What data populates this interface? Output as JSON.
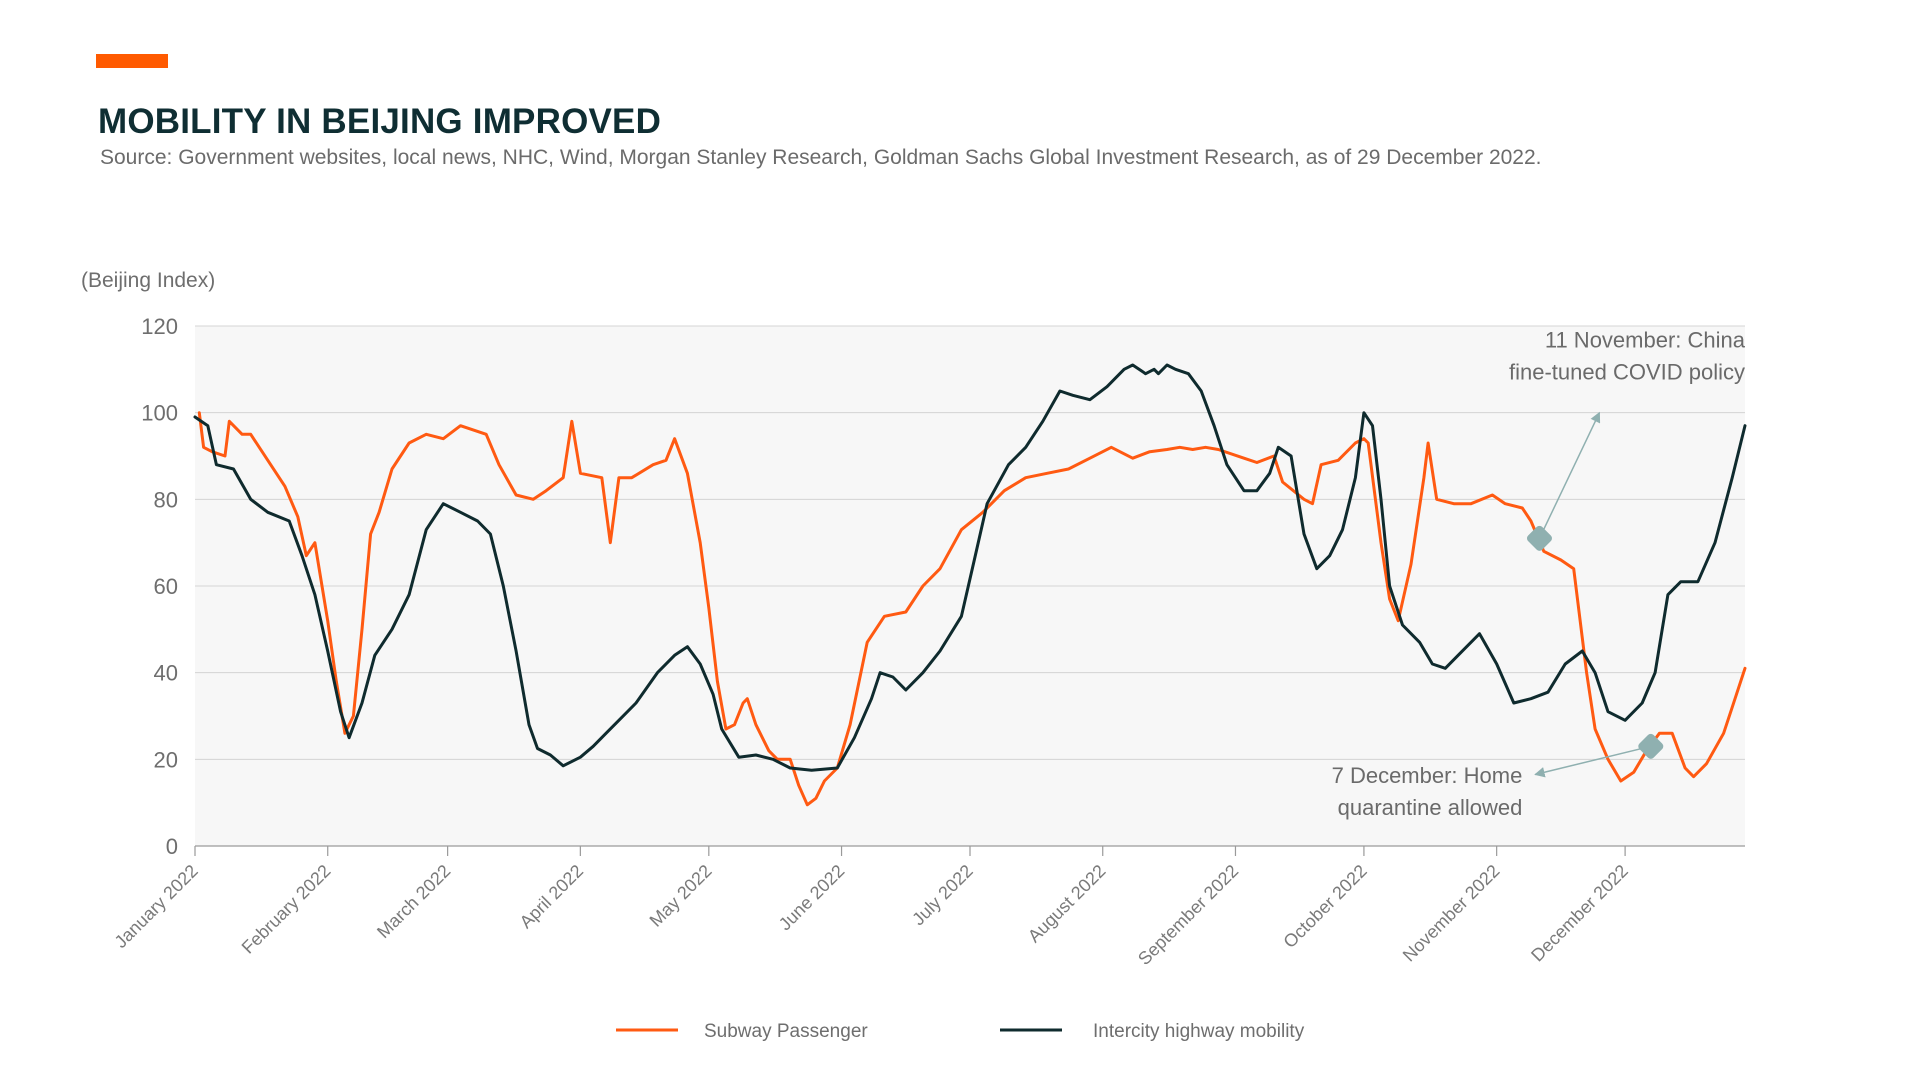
{
  "header": {
    "title": "MOBILITY IN BEIJING IMPROVED",
    "subtitle": "Source: Government websites, local news, NHC, Wind, Morgan Stanley Research, Goldman Sachs Global Investment Research, as of 29 December 2022."
  },
  "colors": {
    "accent": "#ff5a00",
    "title": "#0f2e33",
    "subway": "#ff5a12",
    "highway": "#0f2b2e",
    "annotation": "#8fb0b0",
    "plot_bg": "#f7f7f7",
    "grid": "#d4d4d4"
  },
  "chart_data": {
    "type": "line",
    "ylabel": "(Beijing Index)",
    "ylim": [
      0,
      120
    ],
    "yticks": [
      0,
      20,
      40,
      60,
      80,
      100,
      120
    ],
    "grid": true,
    "legend_position": "bottom",
    "x_tick_labels": [
      "January 2022",
      "February 2022",
      "March 2022",
      "April 2022",
      "May 2022",
      "June 2022",
      "July 2022",
      "August 2022",
      "September 2022",
      "October 2022",
      "November 2022",
      "December 2022"
    ],
    "x_tick_dates": [
      "2022-01-01",
      "2022-02-01",
      "2022-03-01",
      "2022-04-01",
      "2022-05-01",
      "2022-06-01",
      "2022-07-01",
      "2022-08-01",
      "2022-09-01",
      "2022-10-01",
      "2022-11-01",
      "2022-12-01"
    ],
    "xlim": [
      "2022-01-01",
      "2022-12-29"
    ],
    "series": [
      {
        "name": "Subway Passenger",
        "color": "#ff5a12",
        "points": [
          [
            "2022-01-02",
            100
          ],
          [
            "2022-01-03",
            92
          ],
          [
            "2022-01-05",
            91
          ],
          [
            "2022-01-08",
            90
          ],
          [
            "2022-01-09",
            98
          ],
          [
            "2022-01-12",
            95
          ],
          [
            "2022-01-14",
            95
          ],
          [
            "2022-01-18",
            89
          ],
          [
            "2022-01-22",
            83
          ],
          [
            "2022-01-25",
            76
          ],
          [
            "2022-01-27",
            67
          ],
          [
            "2022-01-29",
            70
          ],
          [
            "2022-02-01",
            52
          ],
          [
            "2022-02-03",
            38
          ],
          [
            "2022-02-05",
            26
          ],
          [
            "2022-02-07",
            30
          ],
          [
            "2022-02-09",
            50
          ],
          [
            "2022-02-11",
            72
          ],
          [
            "2022-02-13",
            77
          ],
          [
            "2022-02-16",
            87
          ],
          [
            "2022-02-20",
            93
          ],
          [
            "2022-02-24",
            95
          ],
          [
            "2022-02-28",
            94
          ],
          [
            "2022-03-04",
            97
          ],
          [
            "2022-03-10",
            95
          ],
          [
            "2022-03-13",
            88
          ],
          [
            "2022-03-17",
            81
          ],
          [
            "2022-03-21",
            80
          ],
          [
            "2022-03-24",
            82
          ],
          [
            "2022-03-28",
            85
          ],
          [
            "2022-03-30",
            98
          ],
          [
            "2022-04-01",
            86
          ],
          [
            "2022-04-06",
            85
          ],
          [
            "2022-04-08",
            70
          ],
          [
            "2022-04-10",
            85
          ],
          [
            "2022-04-13",
            85
          ],
          [
            "2022-04-18",
            88
          ],
          [
            "2022-04-21",
            89
          ],
          [
            "2022-04-23",
            94
          ],
          [
            "2022-04-26",
            86
          ],
          [
            "2022-04-29",
            70
          ],
          [
            "2022-05-01",
            55
          ],
          [
            "2022-05-03",
            38
          ],
          [
            "2022-05-05",
            27
          ],
          [
            "2022-05-07",
            28
          ],
          [
            "2022-05-09",
            33
          ],
          [
            "2022-05-10",
            34
          ],
          [
            "2022-05-12",
            28
          ],
          [
            "2022-05-15",
            22
          ],
          [
            "2022-05-17",
            20
          ],
          [
            "2022-05-20",
            20
          ],
          [
            "2022-05-22",
            14
          ],
          [
            "2022-05-24",
            9.5
          ],
          [
            "2022-05-26",
            11
          ],
          [
            "2022-05-28",
            15
          ],
          [
            "2022-05-31",
            18
          ],
          [
            "2022-06-03",
            28
          ],
          [
            "2022-06-07",
            47
          ],
          [
            "2022-06-11",
            53
          ],
          [
            "2022-06-16",
            54
          ],
          [
            "2022-06-20",
            60
          ],
          [
            "2022-06-24",
            64
          ],
          [
            "2022-06-29",
            73
          ],
          [
            "2022-07-04",
            77
          ],
          [
            "2022-07-09",
            82
          ],
          [
            "2022-07-14",
            85
          ],
          [
            "2022-07-19",
            86
          ],
          [
            "2022-07-24",
            87
          ],
          [
            "2022-07-29",
            89.5
          ],
          [
            "2022-08-03",
            92
          ],
          [
            "2022-08-08",
            89.5
          ],
          [
            "2022-08-12",
            91
          ],
          [
            "2022-08-16",
            91.5
          ],
          [
            "2022-08-19",
            92
          ],
          [
            "2022-08-22",
            91.5
          ],
          [
            "2022-08-25",
            92
          ],
          [
            "2022-08-28",
            91.5
          ],
          [
            "2022-09-03",
            89.5
          ],
          [
            "2022-09-06",
            88.5
          ],
          [
            "2022-09-10",
            90
          ],
          [
            "2022-09-12",
            84
          ],
          [
            "2022-09-17",
            80
          ],
          [
            "2022-09-19",
            79
          ],
          [
            "2022-09-21",
            88
          ],
          [
            "2022-09-25",
            89
          ],
          [
            "2022-09-29",
            93
          ],
          [
            "2022-10-01",
            94
          ],
          [
            "2022-10-02",
            93
          ],
          [
            "2022-10-05",
            70
          ],
          [
            "2022-10-07",
            57
          ],
          [
            "2022-10-09",
            52
          ],
          [
            "2022-10-12",
            65
          ],
          [
            "2022-10-15",
            85
          ],
          [
            "2022-10-16",
            93
          ],
          [
            "2022-10-18",
            80
          ],
          [
            "2022-10-22",
            79
          ],
          [
            "2022-10-26",
            79
          ],
          [
            "2022-10-31",
            81
          ],
          [
            "2022-11-03",
            79
          ],
          [
            "2022-11-07",
            78
          ],
          [
            "2022-11-09",
            75
          ],
          [
            "2022-11-12",
            68
          ],
          [
            "2022-11-16",
            66
          ],
          [
            "2022-11-19",
            64
          ],
          [
            "2022-11-22",
            40
          ],
          [
            "2022-11-24",
            27
          ],
          [
            "2022-11-27",
            20
          ],
          [
            "2022-11-30",
            15
          ],
          [
            "2022-12-03",
            17
          ],
          [
            "2022-12-06",
            22
          ],
          [
            "2022-12-09",
            26
          ],
          [
            "2022-12-12",
            26
          ],
          [
            "2022-12-15",
            18
          ],
          [
            "2022-12-17",
            16
          ],
          [
            "2022-12-20",
            19
          ],
          [
            "2022-12-24",
            26
          ],
          [
            "2022-12-26",
            32
          ],
          [
            "2022-12-29",
            41
          ]
        ]
      },
      {
        "name": "Intercity highway mobility",
        "color": "#0f2b2e",
        "points": [
          [
            "2022-01-01",
            99
          ],
          [
            "2022-01-04",
            97
          ],
          [
            "2022-01-06",
            88
          ],
          [
            "2022-01-10",
            87
          ],
          [
            "2022-01-14",
            80
          ],
          [
            "2022-01-18",
            77
          ],
          [
            "2022-01-23",
            75
          ],
          [
            "2022-01-26",
            67
          ],
          [
            "2022-01-29",
            58
          ],
          [
            "2022-02-01",
            45
          ],
          [
            "2022-02-04",
            31
          ],
          [
            "2022-02-06",
            25
          ],
          [
            "2022-02-09",
            33
          ],
          [
            "2022-02-12",
            44
          ],
          [
            "2022-02-16",
            50
          ],
          [
            "2022-02-20",
            58
          ],
          [
            "2022-02-24",
            73
          ],
          [
            "2022-02-28",
            79
          ],
          [
            "2022-03-04",
            77
          ],
          [
            "2022-03-08",
            75
          ],
          [
            "2022-03-11",
            72
          ],
          [
            "2022-03-14",
            60
          ],
          [
            "2022-03-17",
            45
          ],
          [
            "2022-03-20",
            28
          ],
          [
            "2022-03-22",
            22.5
          ],
          [
            "2022-03-25",
            21
          ],
          [
            "2022-03-28",
            18.5
          ],
          [
            "2022-04-01",
            20.5
          ],
          [
            "2022-04-04",
            23
          ],
          [
            "2022-04-07",
            26
          ],
          [
            "2022-04-10",
            29
          ],
          [
            "2022-04-14",
            33
          ],
          [
            "2022-04-19",
            40
          ],
          [
            "2022-04-23",
            44
          ],
          [
            "2022-04-26",
            46
          ],
          [
            "2022-04-29",
            42
          ],
          [
            "2022-05-02",
            35
          ],
          [
            "2022-05-04",
            27
          ],
          [
            "2022-05-08",
            20.5
          ],
          [
            "2022-05-12",
            21
          ],
          [
            "2022-05-16",
            20
          ],
          [
            "2022-05-20",
            18
          ],
          [
            "2022-05-25",
            17.5
          ],
          [
            "2022-05-31",
            18
          ],
          [
            "2022-06-04",
            25
          ],
          [
            "2022-06-08",
            34
          ],
          [
            "2022-06-10",
            40
          ],
          [
            "2022-06-13",
            39
          ],
          [
            "2022-06-16",
            36
          ],
          [
            "2022-06-20",
            40
          ],
          [
            "2022-06-24",
            45
          ],
          [
            "2022-06-29",
            53
          ],
          [
            "2022-07-02",
            66
          ],
          [
            "2022-07-05",
            79
          ],
          [
            "2022-07-10",
            88
          ],
          [
            "2022-07-14",
            92
          ],
          [
            "2022-07-18",
            98
          ],
          [
            "2022-07-22",
            105
          ],
          [
            "2022-07-25",
            104
          ],
          [
            "2022-07-29",
            103
          ],
          [
            "2022-08-02",
            106
          ],
          [
            "2022-08-06",
            110
          ],
          [
            "2022-08-08",
            111
          ],
          [
            "2022-08-11",
            109
          ],
          [
            "2022-08-13",
            110
          ],
          [
            "2022-08-14",
            109
          ],
          [
            "2022-08-16",
            111
          ],
          [
            "2022-08-18",
            110
          ],
          [
            "2022-08-21",
            109
          ],
          [
            "2022-08-24",
            105
          ],
          [
            "2022-08-27",
            97
          ],
          [
            "2022-08-30",
            88
          ],
          [
            "2022-09-03",
            82
          ],
          [
            "2022-09-06",
            82
          ],
          [
            "2022-09-09",
            86
          ],
          [
            "2022-09-11",
            92
          ],
          [
            "2022-09-14",
            90
          ],
          [
            "2022-09-17",
            72
          ],
          [
            "2022-09-20",
            64
          ],
          [
            "2022-09-23",
            67
          ],
          [
            "2022-09-26",
            73
          ],
          [
            "2022-09-29",
            85
          ],
          [
            "2022-10-01",
            100
          ],
          [
            "2022-10-03",
            97
          ],
          [
            "2022-10-05",
            80
          ],
          [
            "2022-10-07",
            60
          ],
          [
            "2022-10-10",
            51
          ],
          [
            "2022-10-14",
            47
          ],
          [
            "2022-10-17",
            42
          ],
          [
            "2022-10-20",
            41
          ],
          [
            "2022-10-23",
            44
          ],
          [
            "2022-10-28",
            49
          ],
          [
            "2022-11-01",
            42
          ],
          [
            "2022-11-05",
            33
          ],
          [
            "2022-11-09",
            34
          ],
          [
            "2022-11-13",
            35.5
          ],
          [
            "2022-11-17",
            42
          ],
          [
            "2022-11-21",
            45
          ],
          [
            "2022-11-24",
            40
          ],
          [
            "2022-11-27",
            31
          ],
          [
            "2022-12-01",
            29
          ],
          [
            "2022-12-05",
            33
          ],
          [
            "2022-12-08",
            40
          ],
          [
            "2022-12-11",
            58
          ],
          [
            "2022-12-14",
            61
          ],
          [
            "2022-12-18",
            61
          ],
          [
            "2022-12-22",
            70
          ],
          [
            "2022-12-26",
            85
          ],
          [
            "2022-12-29",
            97
          ]
        ]
      }
    ],
    "annotations": [
      {
        "id": "nov11",
        "lines": [
          "11 November: China",
          "fine-tuned COVID policy"
        ],
        "target": [
          "2022-11-11",
          71
        ],
        "align": "right",
        "label_anchor": [
          "2022-12-29",
          115
        ],
        "arrow_to": [
          "2022-11-25",
          100
        ]
      },
      {
        "id": "dec7",
        "lines": [
          "7 December:  Home",
          "quarantine allowed"
        ],
        "target": [
          "2022-12-07",
          23
        ],
        "align": "right",
        "label_anchor": [
          "2022-11-07",
          14.5
        ],
        "arrow_to": [
          "2022-11-10",
          16.5
        ]
      }
    ]
  }
}
